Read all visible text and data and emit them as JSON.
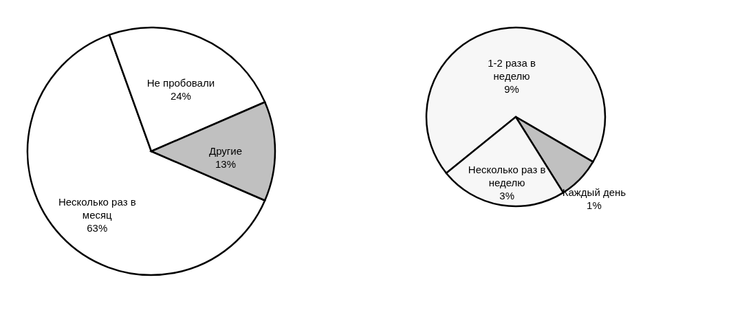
{
  "chart_data": [
    {
      "type": "pie",
      "categories": [
        "Несколько раз в месяц",
        "Не пробовали",
        "Другие"
      ],
      "values": [
        63,
        24,
        13
      ],
      "colors": [
        "#ffffff",
        "#ffffff",
        "#c0c0c0"
      ],
      "value_labels": [
        "63%",
        "24%",
        "13%"
      ],
      "legend": false
    },
    {
      "type": "pie",
      "categories": [
        "1-2 раза в неделю",
        "Каждый день",
        "Несколько раз в неделю"
      ],
      "values": [
        9,
        1,
        3
      ],
      "colors": [
        "#f7f7f7",
        "#c0c0c0",
        "#f7f7f7"
      ],
      "value_labels": [
        "9%",
        "1%",
        "3%"
      ],
      "legend": false
    }
  ]
}
